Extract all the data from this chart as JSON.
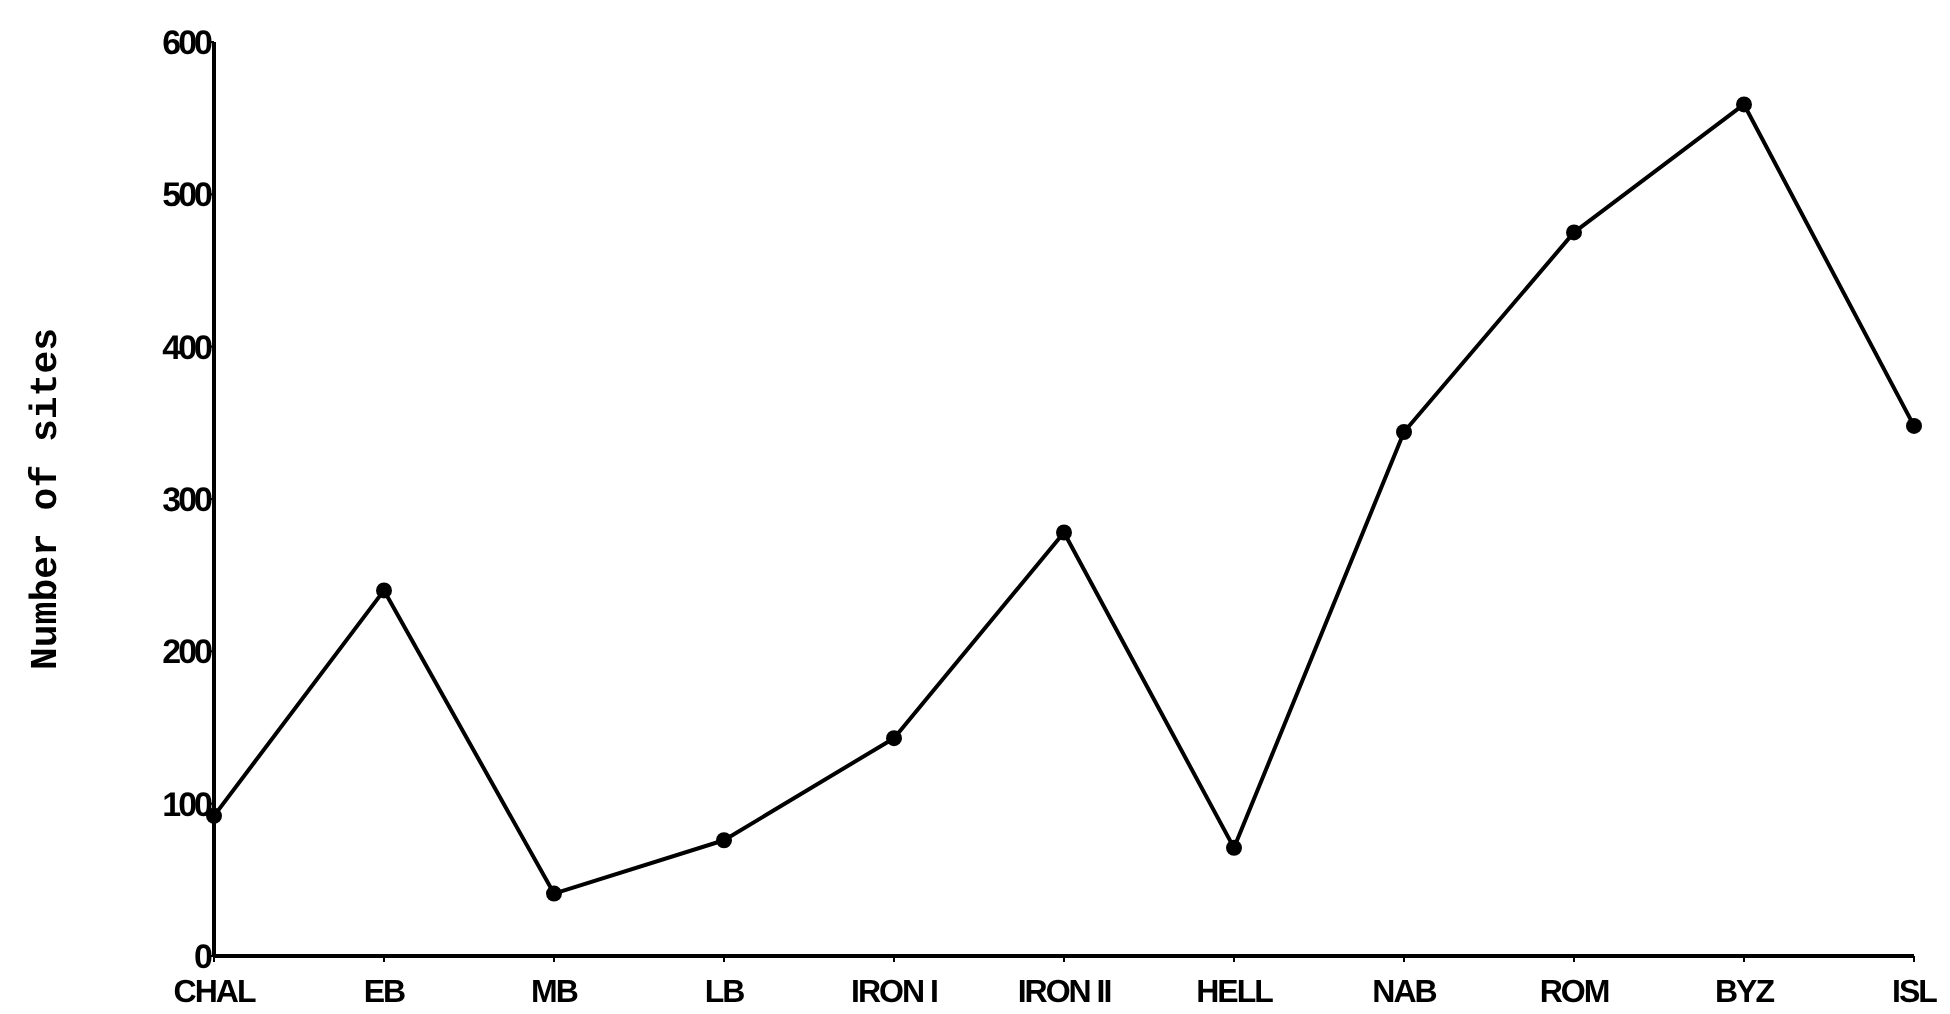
{
  "chart_data": {
    "type": "line",
    "ylabel": "Number of sites",
    "categories": [
      "CHAL",
      "EB",
      "MB",
      "LB",
      "IRON I",
      "IRON II",
      "HELL",
      "NAB",
      "ROM",
      "BYZ",
      "ISL"
    ],
    "values": [
      92,
      240,
      41,
      76,
      143,
      278,
      71,
      344,
      475,
      559,
      348
    ],
    "color": "#000000",
    "marker": "circle",
    "line_style": "solid",
    "ylim": [
      0,
      600
    ],
    "yticks": [
      0,
      100,
      200,
      300,
      400,
      500,
      600
    ],
    "grid": false
  }
}
